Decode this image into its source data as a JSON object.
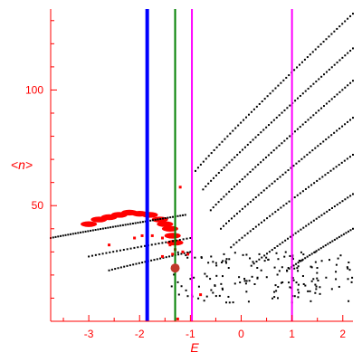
{
  "chart_data": {
    "type": "scatter",
    "title": "",
    "xlabel": "E",
    "ylabel": "<n>",
    "xlim": [
      -3.75,
      2.2
    ],
    "ylim": [
      0,
      135
    ],
    "x_ticks": [
      -3,
      -2,
      -1,
      0,
      1,
      2
    ],
    "y_ticks": [
      50,
      100
    ],
    "colors": {
      "axis": "#ff0000",
      "points": "#000000",
      "red_points": "#ff0000",
      "v_blue": "#0000ff",
      "v_green": "#008000",
      "v_magenta": "#ff00ff",
      "marker": "#c0392b"
    },
    "vertical_lines": [
      {
        "x": -1.85,
        "color": "#0000ff",
        "width": 4
      },
      {
        "x": -1.3,
        "color": "#008000",
        "width": 2
      },
      {
        "x": -0.97,
        "color": "#ff00ff",
        "width": 2
      },
      {
        "x": 1.0,
        "color": "#ff00ff",
        "width": 2
      }
    ],
    "marker_point": {
      "x": -1.3,
      "y": 23
    },
    "black_curves": [
      {
        "x_start": -3.75,
        "x_end": -1.1,
        "y_start": 36,
        "y_end": 46,
        "n": 55
      },
      {
        "x_start": -0.9,
        "x_end": 2.2,
        "y_start": 65,
        "y_end": 133,
        "n": 60
      },
      {
        "x_start": -0.75,
        "x_end": 2.2,
        "y_start": 57,
        "y_end": 118,
        "n": 58
      },
      {
        "x_start": -0.6,
        "x_end": 2.2,
        "y_start": 48,
        "y_end": 104,
        "n": 55
      },
      {
        "x_start": -0.4,
        "x_end": 2.2,
        "y_start": 40,
        "y_end": 88,
        "n": 50
      },
      {
        "x_start": -0.2,
        "x_end": 2.2,
        "y_start": 32,
        "y_end": 72,
        "n": 45
      },
      {
        "x_start": 0.2,
        "x_end": 2.2,
        "y_start": 24,
        "y_end": 55,
        "n": 40
      },
      {
        "x_start": 0.9,
        "x_end": 2.2,
        "y_start": 22,
        "y_end": 40,
        "n": 30
      },
      {
        "x_start": -3.0,
        "x_end": -1.0,
        "y_start": 28,
        "y_end": 36,
        "n": 30
      },
      {
        "x_start": -2.6,
        "x_end": -1.0,
        "y_start": 22,
        "y_end": 30,
        "n": 28
      }
    ],
    "scatter_region": {
      "x_min": -1.4,
      "x_max": 2.2,
      "y_min": 8,
      "y_max": 30,
      "n": 170
    },
    "red_band": [
      {
        "x": -3.0,
        "y": 42
      },
      {
        "x": -2.8,
        "y": 44
      },
      {
        "x": -2.6,
        "y": 45
      },
      {
        "x": -2.4,
        "y": 46
      },
      {
        "x": -2.2,
        "y": 47
      },
      {
        "x": -2.0,
        "y": 46.5
      },
      {
        "x": -1.8,
        "y": 46
      },
      {
        "x": -1.6,
        "y": 44
      },
      {
        "x": -1.5,
        "y": 42
      },
      {
        "x": -1.4,
        "y": 40
      },
      {
        "x": -1.35,
        "y": 37
      },
      {
        "x": -1.3,
        "y": 34
      }
    ],
    "red_scatter": [
      {
        "x": -2.1,
        "y": 36
      },
      {
        "x": -1.95,
        "y": 37
      },
      {
        "x": -1.75,
        "y": 37
      },
      {
        "x": -1.55,
        "y": 36
      },
      {
        "x": -1.4,
        "y": 33
      },
      {
        "x": -1.3,
        "y": 31
      },
      {
        "x": -1.15,
        "y": 30
      },
      {
        "x": -1.05,
        "y": 29
      },
      {
        "x": -1.2,
        "y": 58
      },
      {
        "x": -2.6,
        "y": 33
      },
      {
        "x": -1.25,
        "y": 1
      },
      {
        "x": -0.8,
        "y": 11.5
      },
      {
        "x": -1.55,
        "y": 28
      },
      {
        "x": -1.35,
        "y": 29
      }
    ]
  }
}
